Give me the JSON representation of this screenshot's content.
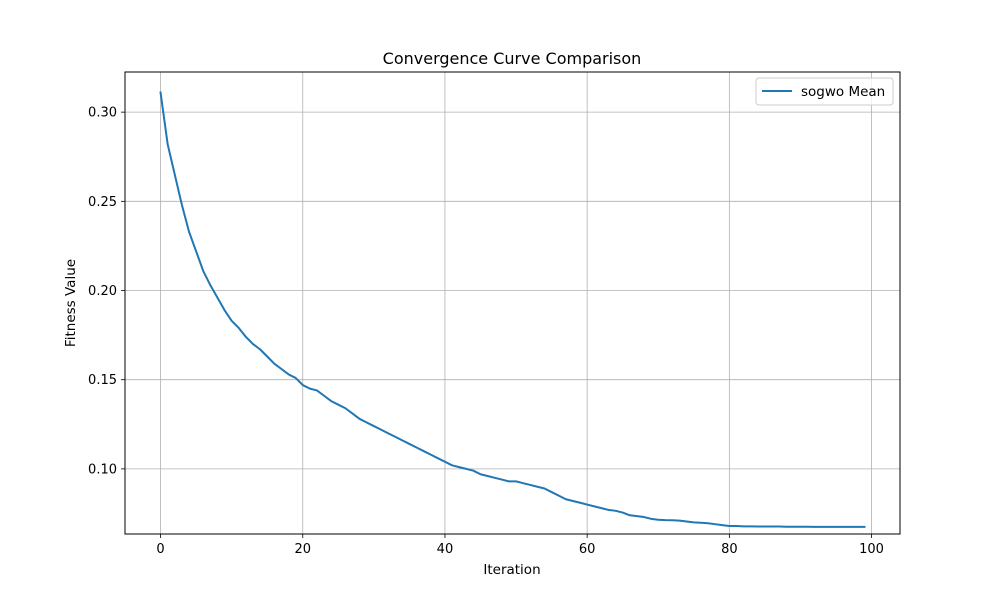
{
  "chart_data": {
    "type": "line",
    "title": "Convergence Curve Comparison",
    "xlabel": "Iteration",
    "ylabel": "Fitness Value",
    "xlim": [
      -5,
      104
    ],
    "ylim": [
      0.0635,
      0.3225
    ],
    "xticks": [
      0,
      20,
      40,
      60,
      80,
      100
    ],
    "xtick_labels": [
      "0",
      "20",
      "40",
      "60",
      "80",
      "100"
    ],
    "yticks": [
      0.1,
      0.15,
      0.2,
      0.25,
      0.3
    ],
    "ytick_labels": [
      "0.10",
      "0.15",
      "0.20",
      "0.25",
      "0.30"
    ],
    "grid": true,
    "legend_position": "top-right",
    "series": [
      {
        "name": "sogwo Mean",
        "color": "#1f77b4",
        "x": [
          0,
          1,
          2,
          3,
          4,
          5,
          6,
          7,
          8,
          9,
          10,
          11,
          12,
          13,
          14,
          15,
          16,
          17,
          18,
          19,
          20,
          21,
          22,
          23,
          24,
          25,
          26,
          27,
          28,
          29,
          30,
          31,
          32,
          33,
          34,
          35,
          36,
          37,
          38,
          39,
          40,
          41,
          42,
          43,
          44,
          45,
          46,
          47,
          48,
          49,
          50,
          51,
          52,
          53,
          54,
          55,
          56,
          57,
          58,
          59,
          60,
          61,
          62,
          63,
          64,
          65,
          66,
          67,
          68,
          69,
          70,
          71,
          72,
          73,
          74,
          75,
          76,
          77,
          78,
          79,
          80,
          81,
          82,
          83,
          84,
          85,
          86,
          87,
          88,
          89,
          90,
          91,
          92,
          93,
          94,
          95,
          96,
          97,
          98,
          99
        ],
        "y": [
          0.311,
          0.282,
          0.265,
          0.248,
          0.233,
          0.222,
          0.211,
          0.203,
          0.196,
          0.189,
          0.183,
          0.179,
          0.174,
          0.17,
          0.167,
          0.163,
          0.159,
          0.156,
          0.153,
          0.151,
          0.147,
          0.145,
          0.144,
          0.141,
          0.138,
          0.136,
          0.134,
          0.131,
          0.128,
          0.126,
          0.124,
          0.122,
          0.12,
          0.118,
          0.116,
          0.114,
          0.112,
          0.11,
          0.108,
          0.106,
          0.104,
          0.102,
          0.101,
          0.1,
          0.099,
          0.097,
          0.096,
          0.095,
          0.094,
          0.093,
          0.093,
          0.092,
          0.091,
          0.09,
          0.089,
          0.087,
          0.085,
          0.083,
          0.082,
          0.081,
          0.08,
          0.079,
          0.078,
          0.077,
          0.0765,
          0.0755,
          0.074,
          0.0735,
          0.073,
          0.072,
          0.0715,
          0.0713,
          0.0712,
          0.071,
          0.0705,
          0.07,
          0.0698,
          0.0695,
          0.069,
          0.0685,
          0.068,
          0.068,
          0.0678,
          0.0678,
          0.0677,
          0.0677,
          0.0677,
          0.0677,
          0.0676,
          0.0676,
          0.0676,
          0.0676,
          0.0675,
          0.0675,
          0.0675,
          0.0675,
          0.0675,
          0.0675,
          0.0675,
          0.0675
        ]
      }
    ]
  }
}
